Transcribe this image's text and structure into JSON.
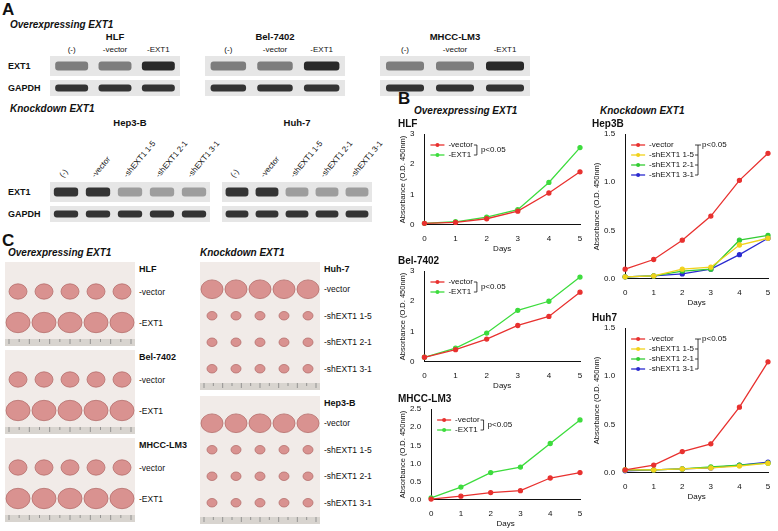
{
  "panel_a": {
    "label": "A",
    "sections": [
      {
        "title": "Overexpressing EXT1",
        "rows": [
          "EXT1",
          "GAPDH"
        ],
        "blots": [
          {
            "name": "HLF",
            "lanes": [
              "(-)",
              "-vector",
              "-EXT1"
            ]
          },
          {
            "name": "Bel-7402",
            "lanes": [
              "(-)",
              "-vector",
              "-EXT1"
            ]
          },
          {
            "name": "MHCC-LM3",
            "lanes": [
              "(-)",
              "-vector",
              "-EXT1"
            ]
          }
        ]
      },
      {
        "title": "Knockdown EXT1",
        "rows": [
          "EXT1",
          "GAPDH"
        ],
        "blots": [
          {
            "name": "Hep3-B",
            "lanes": [
              "(-)",
              "-vector",
              "-shEXT1 1-5",
              "-shEXT1 2-1",
              "-shEXT1 3-1"
            ]
          },
          {
            "name": "Huh-7",
            "lanes": [
              "(-)",
              "-vector",
              "-shEXT1 1-5",
              "-shEXT1 2-1",
              "-shEXT1 3-1"
            ]
          }
        ]
      }
    ]
  },
  "panel_b": {
    "label": "B",
    "headers": [
      "Overexpressing EXT1",
      "Knockdown EXT1"
    ]
  },
  "panel_c": {
    "label": "C",
    "sections": [
      {
        "title": "Overexpressing EXT1",
        "photos": [
          {
            "name": "HLF",
            "rows": [
              "-vector",
              "-EXT1"
            ]
          },
          {
            "name": "Bel-7402",
            "rows": [
              "-vector",
              "-EXT1"
            ]
          },
          {
            "name": "MHCC-LM3",
            "rows": [
              "-vector",
              "-EXT1"
            ]
          }
        ]
      },
      {
        "title": "Knockdown EXT1",
        "photos": [
          {
            "name": "Huh-7",
            "rows": [
              "-vector",
              "-shEXT1 1-5",
              "-shEXT1 2-1",
              "-shEXT1 3-1"
            ]
          },
          {
            "name": "Hep3-B",
            "rows": [
              "-vector",
              "-shEXT1 1-5",
              "-shEXT1 2-1",
              "-shEXT1 3-1"
            ]
          }
        ]
      }
    ]
  },
  "chart_data": [
    {
      "type": "line",
      "title": "HLF",
      "xlabel": "Days",
      "ylabel": "Absorbance (O.D. 450nm)",
      "annotation": "p<0.05",
      "legend": "top-left",
      "grid": false,
      "marker": "circle",
      "line_style": "solid",
      "x": [
        0,
        1,
        2,
        3,
        4,
        5
      ],
      "xlim": [
        0,
        5
      ],
      "xticks": [
        0,
        1,
        2,
        3,
        4,
        5
      ],
      "ylim": [
        0,
        3
      ],
      "yticks": [
        0,
        1,
        2,
        3
      ],
      "series": [
        {
          "name": "-vector",
          "color": "#e8312f",
          "values": [
            0.05,
            0.08,
            0.2,
            0.45,
            1.05,
            1.75
          ]
        },
        {
          "name": "-EXT1",
          "color": "#3ddc3d",
          "values": [
            0.05,
            0.1,
            0.25,
            0.5,
            1.4,
            2.55
          ]
        }
      ]
    },
    {
      "type": "line",
      "title": "Bel-7402",
      "xlabel": "Days",
      "ylabel": "Absorbance (O.D. 450nm)",
      "annotation": "p<0.05",
      "legend": "top-left",
      "grid": false,
      "marker": "circle",
      "line_style": "solid",
      "x": [
        0,
        1,
        2,
        3,
        4,
        5
      ],
      "xlim": [
        0,
        5
      ],
      "xticks": [
        0,
        1,
        2,
        3,
        4,
        5
      ],
      "ylim": [
        0,
        3
      ],
      "yticks": [
        0,
        1,
        2,
        3
      ],
      "series": [
        {
          "name": "-vector",
          "color": "#e8312f",
          "values": [
            0.15,
            0.4,
            0.75,
            1.2,
            1.5,
            2.3
          ]
        },
        {
          "name": "-EXT1",
          "color": "#3ddc3d",
          "values": [
            0.15,
            0.45,
            0.95,
            1.7,
            2.0,
            2.8
          ]
        }
      ]
    },
    {
      "type": "line",
      "title": "MHCC-LM3",
      "xlabel": "Days",
      "ylabel": "Absorbance (O.D. 450nm)",
      "annotation": "p<0.05",
      "legend": "top-left",
      "grid": false,
      "marker": "circle",
      "line_style": "solid",
      "x": [
        0,
        1,
        2,
        3,
        4,
        5
      ],
      "xlim": [
        0,
        5
      ],
      "xticks": [
        0,
        1,
        2,
        3,
        4,
        5
      ],
      "ylim": [
        0,
        2.5
      ],
      "yticks": [
        {
          "value": 0,
          "label": "0.0"
        },
        0.5,
        {
          "value": 1,
          "label": "1.0"
        },
        1.5,
        {
          "value": 2,
          "label": "2.0"
        },
        2.5
      ],
      "series": [
        {
          "name": "-vector",
          "color": "#e8312f",
          "values": [
            0.02,
            0.1,
            0.2,
            0.25,
            0.6,
            0.75
          ]
        },
        {
          "name": "-EXT1",
          "color": "#3ddc3d",
          "values": [
            0.05,
            0.35,
            0.75,
            0.9,
            1.55,
            2.2
          ]
        }
      ]
    },
    {
      "type": "line",
      "title": "Hep3B",
      "xlabel": "Days",
      "ylabel": "Absorbance (O.D. 450nm)",
      "annotation": "p<0.05",
      "legend": "top-left",
      "grid": false,
      "marker": "circle",
      "line_style": "solid",
      "x": [
        0,
        1,
        2,
        3,
        4,
        5
      ],
      "xlim": [
        0,
        5
      ],
      "xticks": [
        0,
        1,
        2,
        3,
        4,
        5
      ],
      "ylim": [
        0,
        1.5
      ],
      "yticks": [
        {
          "value": 0,
          "label": "0.0"
        },
        0.5,
        {
          "value": 1,
          "label": "1.0"
        },
        1.5
      ],
      "series": [
        {
          "name": "-vector",
          "color": "#e8312f",
          "values": [
            0.1,
            0.2,
            0.4,
            0.65,
            1.02,
            1.3
          ]
        },
        {
          "name": "-shEXT1 1-5",
          "color": "#f2d21b",
          "values": [
            0.02,
            0.03,
            0.1,
            0.12,
            0.35,
            0.42
          ]
        },
        {
          "name": "-shEXT1 2-1",
          "color": "#33cc33",
          "values": [
            0.02,
            0.03,
            0.08,
            0.1,
            0.4,
            0.45
          ]
        },
        {
          "name": "-shEXT1 3-1",
          "color": "#2b2bd0",
          "values": [
            0.02,
            0.03,
            0.05,
            0.1,
            0.25,
            0.42
          ]
        }
      ]
    },
    {
      "type": "line",
      "title": "Huh7",
      "xlabel": "Days",
      "ylabel": "Absorbance (O.D. 450nm)",
      "annotation": "p<0.05",
      "legend": "top-left",
      "grid": false,
      "marker": "circle",
      "line_style": "solid",
      "x": [
        0,
        1,
        2,
        3,
        4,
        5
      ],
      "xlim": [
        0,
        5
      ],
      "xticks": [
        0,
        1,
        2,
        3,
        4,
        5
      ],
      "ylim": [
        0,
        1.5
      ],
      "yticks": [
        {
          "value": 0,
          "label": "0.0"
        },
        0.5,
        {
          "value": 1,
          "label": "1.0"
        },
        1.5
      ],
      "series": [
        {
          "name": "-vector",
          "color": "#e8312f",
          "values": [
            0.03,
            0.08,
            0.22,
            0.3,
            0.68,
            1.15
          ]
        },
        {
          "name": "-shEXT1 1-5",
          "color": "#f2d21b",
          "values": [
            0.03,
            0.03,
            0.04,
            0.05,
            0.07,
            0.1
          ]
        },
        {
          "name": "-shEXT1 2-1",
          "color": "#33cc33",
          "values": [
            0.03,
            0.03,
            0.04,
            0.06,
            0.08,
            0.1
          ]
        },
        {
          "name": "-shEXT1 3-1",
          "color": "#2b2bd0",
          "values": [
            0.02,
            0.03,
            0.04,
            0.05,
            0.08,
            0.11
          ]
        }
      ]
    }
  ]
}
